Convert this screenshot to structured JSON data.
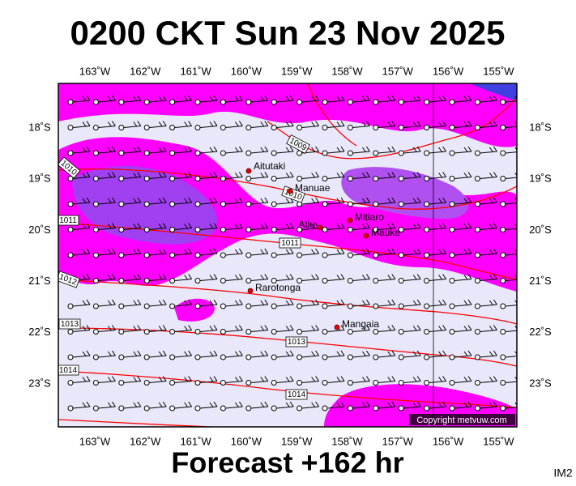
{
  "title": "0200 CKT Sun 23 Nov 2025",
  "longitude_labels": [
    "163˚W",
    "162˚W",
    "161˚W",
    "160˚W",
    "159˚W",
    "158˚W",
    "157˚W",
    "156˚W",
    "155˚W"
  ],
  "latitude_labels": [
    "18˚S",
    "19˚S",
    "20˚S",
    "21˚S",
    "22˚S",
    "23˚S"
  ],
  "places": [
    "Aitutaki",
    "Manuae",
    "Mitiaro",
    "Atiu",
    "Mauke",
    "Rarotonga",
    "Mangaia"
  ],
  "isobar_labels": [
    "1009",
    "1010",
    "1010",
    "1011",
    "1011",
    "1012",
    "1013",
    "1013",
    "1014",
    "1014"
  ],
  "copyright": "Copyright metvuw.com",
  "footer": "Forecast +162 hr",
  "image_id": "IM2"
}
